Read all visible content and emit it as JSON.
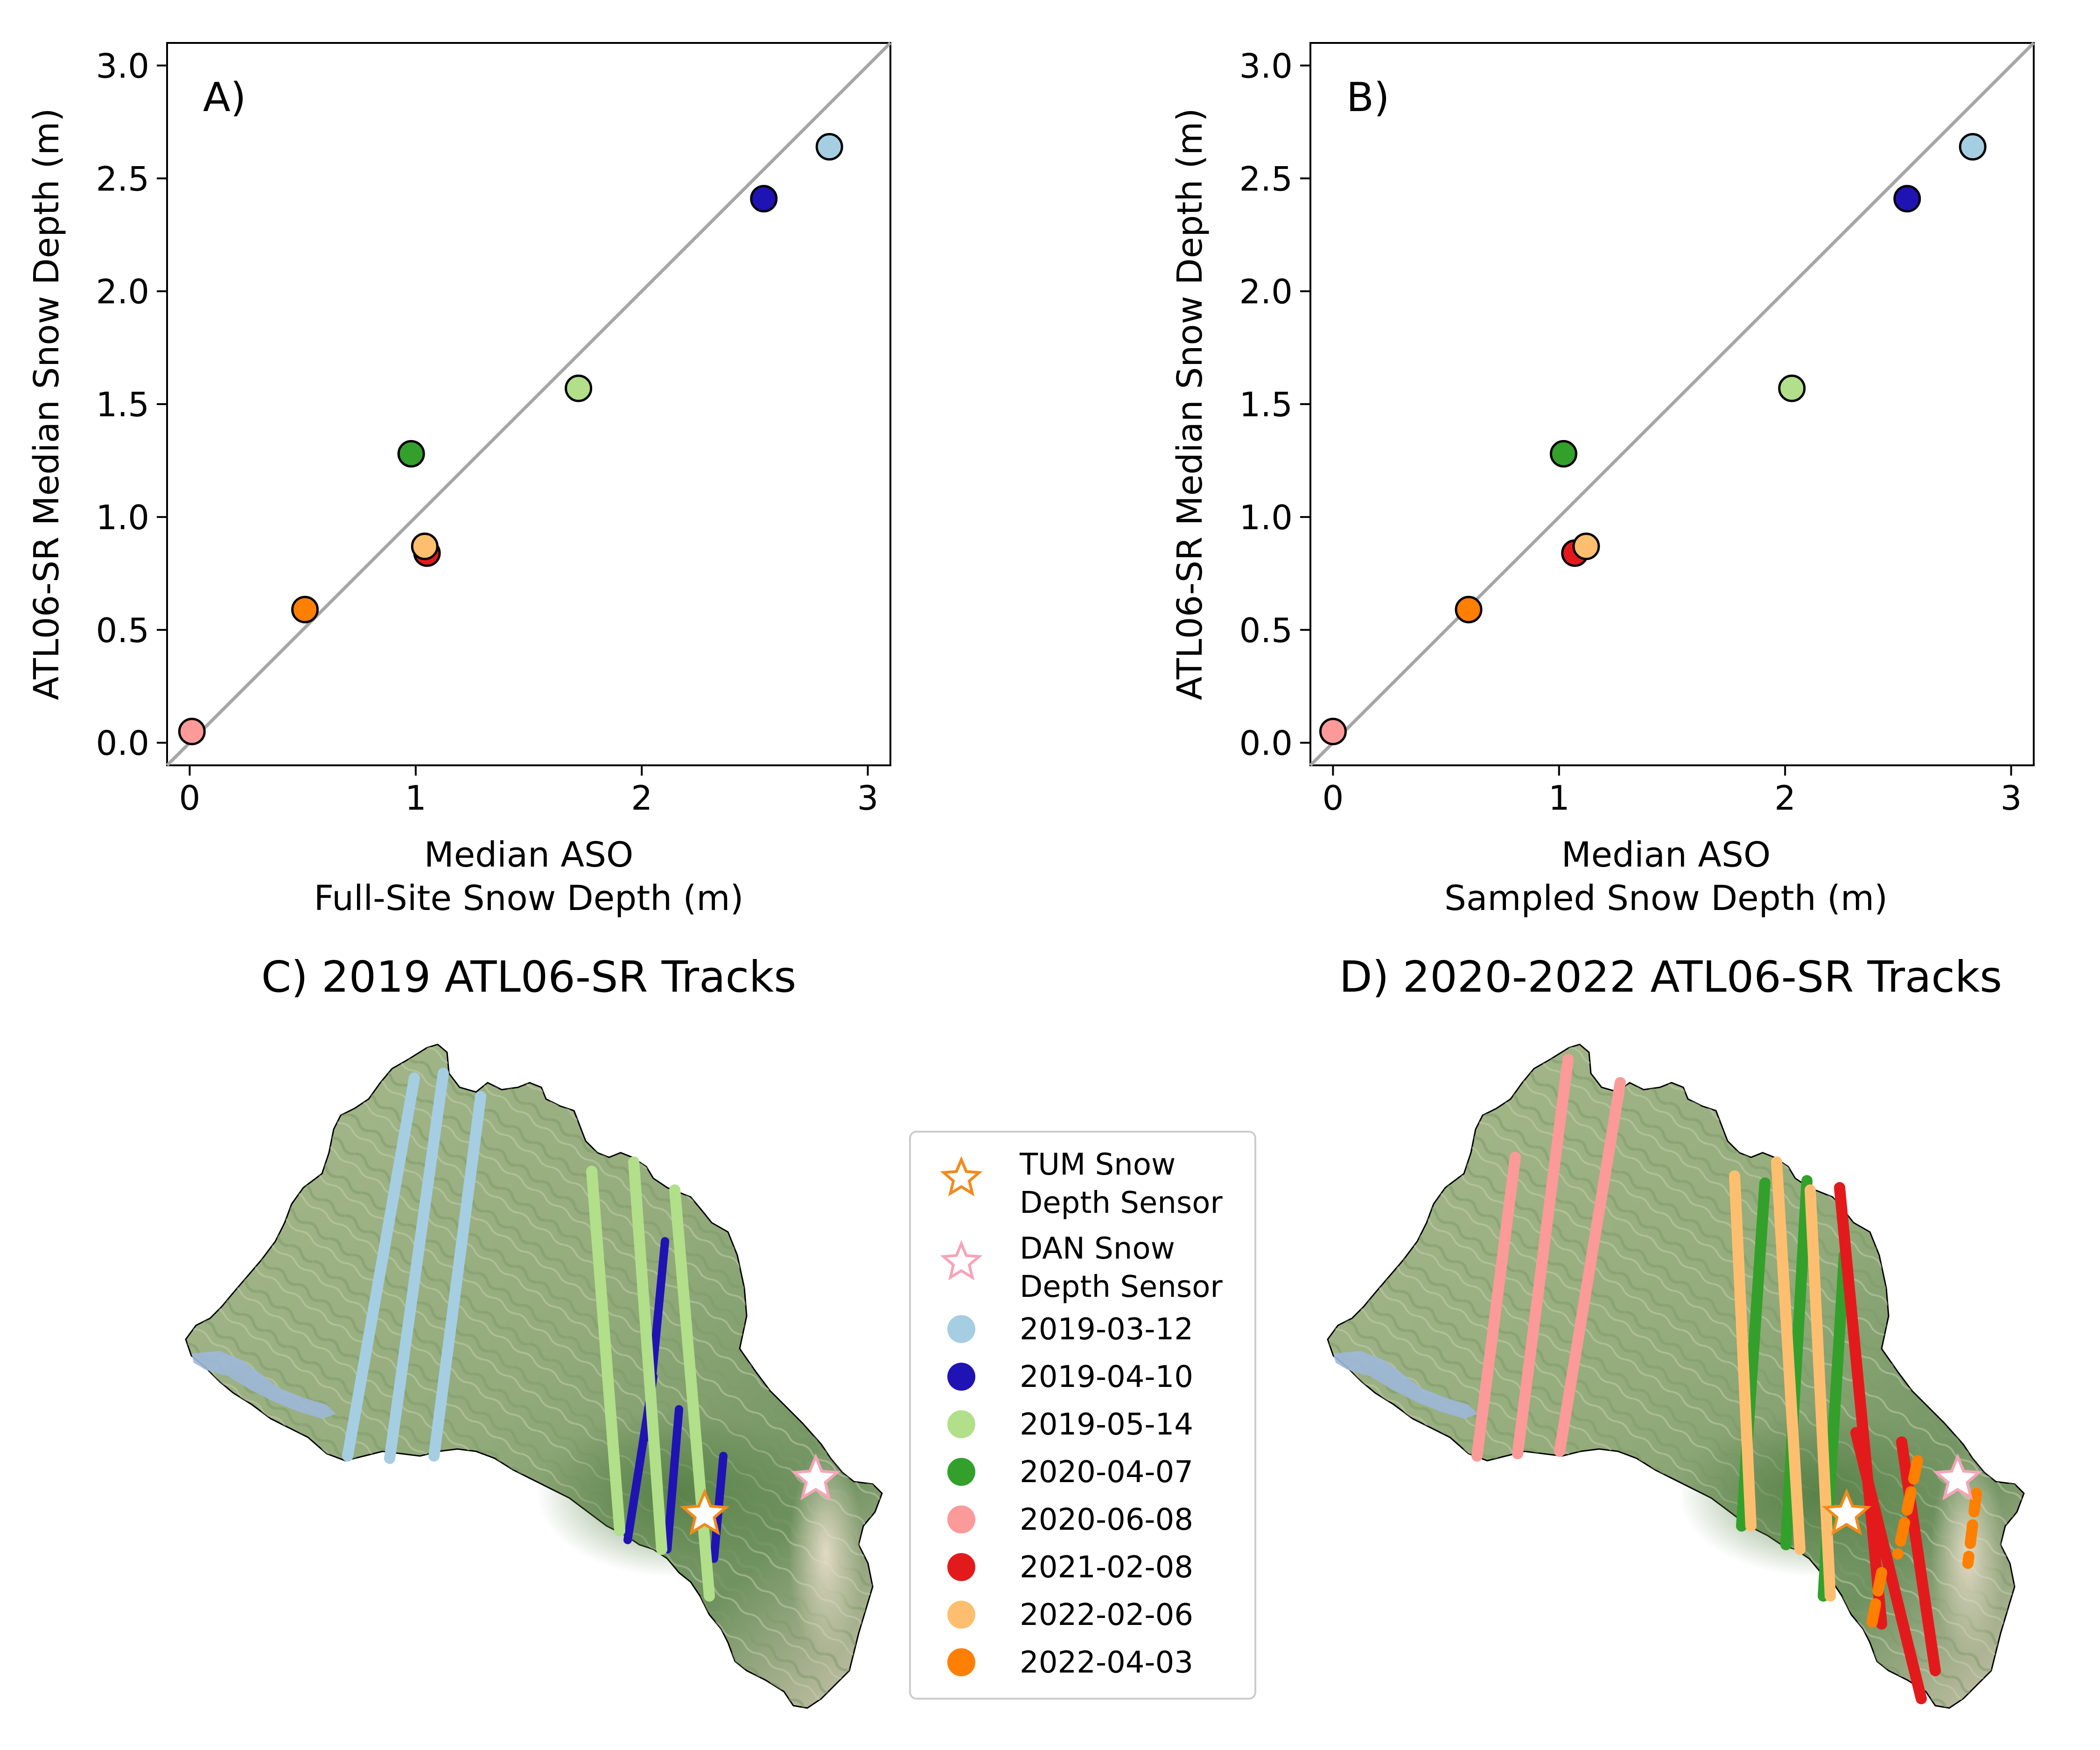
{
  "chart_data": [
    {
      "type": "scatter",
      "panel_label": "A)",
      "xlabel": [
        "Median ASO",
        "Full-Site Snow Depth (m)"
      ],
      "ylabel": "ATL06-SR Median Snow Depth (m)",
      "xlim": [
        -0.1,
        3.1
      ],
      "ylim": [
        -0.1,
        3.1
      ],
      "xticks": [
        "0",
        "1",
        "2",
        "3"
      ],
      "yticks": [
        "0.0",
        "0.5",
        "1.0",
        "1.5",
        "2.0",
        "2.5",
        "3.0"
      ],
      "one_to_one_line": true,
      "points": [
        {
          "date": "2020-06-08",
          "x": 0.01,
          "y": 0.05
        },
        {
          "date": "2022-04-03",
          "x": 0.51,
          "y": 0.59
        },
        {
          "date": "2020-04-07",
          "x": 0.98,
          "y": 1.28
        },
        {
          "date": "2021-02-08",
          "x": 1.05,
          "y": 0.84
        },
        {
          "date": "2022-02-06",
          "x": 1.04,
          "y": 0.87
        },
        {
          "date": "2019-05-14",
          "x": 1.72,
          "y": 1.57
        },
        {
          "date": "2019-04-10",
          "x": 2.54,
          "y": 2.41
        },
        {
          "date": "2019-03-12",
          "x": 2.83,
          "y": 2.64
        }
      ]
    },
    {
      "type": "scatter",
      "panel_label": "B)",
      "xlabel": [
        "Median ASO",
        "Sampled Snow Depth (m)"
      ],
      "ylabel": "ATL06-SR Median Snow Depth (m)",
      "xlim": [
        -0.1,
        3.1
      ],
      "ylim": [
        -0.1,
        3.1
      ],
      "xticks": [
        "0",
        "1",
        "2",
        "3"
      ],
      "yticks": [
        "0.0",
        "0.5",
        "1.0",
        "1.5",
        "2.0",
        "2.5",
        "3.0"
      ],
      "one_to_one_line": true,
      "points": [
        {
          "date": "2020-06-08",
          "x": 0.0,
          "y": 0.05
        },
        {
          "date": "2022-04-03",
          "x": 0.6,
          "y": 0.59
        },
        {
          "date": "2020-04-07",
          "x": 1.02,
          "y": 1.28
        },
        {
          "date": "2021-02-08",
          "x": 1.07,
          "y": 0.84
        },
        {
          "date": "2022-02-06",
          "x": 1.12,
          "y": 0.87
        },
        {
          "date": "2019-05-14",
          "x": 2.03,
          "y": 1.57
        },
        {
          "date": "2019-04-10",
          "x": 2.54,
          "y": 2.41
        },
        {
          "date": "2019-03-12",
          "x": 2.83,
          "y": 2.64
        }
      ]
    }
  ],
  "maps": [
    {
      "title": "C) 2019 ATL06-SR Tracks",
      "tracks": [
        "2019-03-12",
        "2019-04-10",
        "2019-05-14"
      ]
    },
    {
      "title": "D) 2020-2022 ATL06-SR Tracks",
      "tracks": [
        "2020-04-07",
        "2020-06-08",
        "2021-02-08",
        "2022-02-06",
        "2022-04-03"
      ]
    }
  ],
  "legend": {
    "sensors": [
      {
        "line1": "TUM Snow",
        "line2": "Depth Sensor",
        "color": "#f28a1a"
      },
      {
        "line1": "DAN Snow",
        "line2": "Depth Sensor",
        "color": "#f4a6b8"
      }
    ],
    "dates": [
      {
        "label": "2019-03-12",
        "color": "#a6cee3"
      },
      {
        "label": "2019-04-10",
        "color": "#1f13b4"
      },
      {
        "label": "2019-05-14",
        "color": "#b2df8a"
      },
      {
        "label": "2020-04-07",
        "color": "#33a02c"
      },
      {
        "label": "2020-06-08",
        "color": "#fb9a99"
      },
      {
        "label": "2021-02-08",
        "color": "#e31a1c"
      },
      {
        "label": "2022-02-06",
        "color": "#fdbf6f"
      },
      {
        "label": "2022-04-03",
        "color": "#ff7f00"
      }
    ]
  }
}
